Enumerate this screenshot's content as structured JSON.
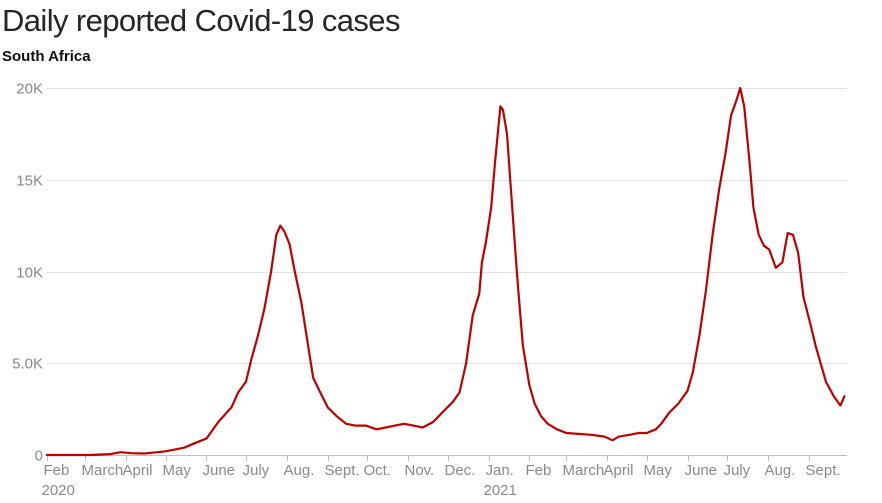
{
  "header": {
    "title": "Daily reported Covid-19 cases",
    "subtitle": "South Africa"
  },
  "colors": {
    "line": "#c00000",
    "grid": "#e3e3e3",
    "tick_text": "#8a8a8a",
    "title_text": "#262626"
  },
  "chart_data": {
    "type": "line",
    "title": "Daily reported Covid-19 cases",
    "subtitle": "South Africa",
    "xlabel": "",
    "ylabel": "",
    "ylim": [
      0,
      20000
    ],
    "xlim": [
      "2020-02-01",
      "2021-09-30"
    ],
    "grid": true,
    "y_ticks": [
      {
        "value": 0,
        "label": "0"
      },
      {
        "value": 5000,
        "label": "5.0K"
      },
      {
        "value": 10000,
        "label": "10K"
      },
      {
        "value": 15000,
        "label": "15K"
      },
      {
        "value": 20000,
        "label": "20K"
      }
    ],
    "x_ticks": [
      {
        "date": "2020-02-01",
        "label": "Feb",
        "year_label": "2020"
      },
      {
        "date": "2020-03-01",
        "label": "March"
      },
      {
        "date": "2020-04-01",
        "label": "April"
      },
      {
        "date": "2020-05-01",
        "label": "May"
      },
      {
        "date": "2020-06-01",
        "label": "June"
      },
      {
        "date": "2020-07-01",
        "label": "July"
      },
      {
        "date": "2020-08-01",
        "label": "Aug."
      },
      {
        "date": "2020-09-01",
        "label": "Sept."
      },
      {
        "date": "2020-10-01",
        "label": "Oct."
      },
      {
        "date": "2020-11-01",
        "label": "Nov."
      },
      {
        "date": "2020-12-01",
        "label": "Dec."
      },
      {
        "date": "2021-01-01",
        "label": "Jan.",
        "year_label": "2021"
      },
      {
        "date": "2021-02-01",
        "label": "Feb"
      },
      {
        "date": "2021-03-01",
        "label": "March"
      },
      {
        "date": "2021-04-01",
        "label": "April"
      },
      {
        "date": "2021-05-01",
        "label": "May"
      },
      {
        "date": "2021-06-01",
        "label": "June"
      },
      {
        "date": "2021-07-01",
        "label": "July"
      },
      {
        "date": "2021-08-01",
        "label": "Aug."
      },
      {
        "date": "2021-09-01",
        "label": "Sept."
      }
    ],
    "series": [
      {
        "x": [
          "2020-02-01",
          "2020-03-05",
          "2020-03-20",
          "2020-03-28",
          "2020-04-05",
          "2020-04-15",
          "2020-05-01",
          "2020-05-15",
          "2020-05-25",
          "2020-06-01",
          "2020-06-10",
          "2020-06-20",
          "2020-06-25",
          "2020-07-01",
          "2020-07-05",
          "2020-07-10",
          "2020-07-15",
          "2020-07-20",
          "2020-07-24",
          "2020-07-27",
          "2020-07-30",
          "2020-08-03",
          "2020-08-07",
          "2020-08-12",
          "2020-08-17",
          "2020-08-21",
          "2020-08-25",
          "2020-09-01",
          "2020-09-08",
          "2020-09-15",
          "2020-09-22",
          "2020-09-30",
          "2020-10-08",
          "2020-10-15",
          "2020-10-22",
          "2020-10-29",
          "2020-11-05",
          "2020-11-12",
          "2020-11-20",
          "2020-11-28",
          "2020-12-05",
          "2020-12-10",
          "2020-12-15",
          "2020-12-20",
          "2020-12-25",
          "2020-12-27",
          "2020-12-30",
          "2021-01-03",
          "2021-01-06",
          "2021-01-10",
          "2021-01-12",
          "2021-01-15",
          "2021-01-19",
          "2021-01-23",
          "2021-01-27",
          "2021-02-01",
          "2021-02-05",
          "2021-02-10",
          "2021-02-15",
          "2021-02-22",
          "2021-03-01",
          "2021-03-10",
          "2021-03-20",
          "2021-03-30",
          "2021-04-05",
          "2021-04-10",
          "2021-04-18",
          "2021-04-25",
          "2021-05-01",
          "2021-05-08",
          "2021-05-12",
          "2021-05-18",
          "2021-05-25",
          "2021-06-01",
          "2021-06-05",
          "2021-06-10",
          "2021-06-15",
          "2021-06-20",
          "2021-06-25",
          "2021-06-30",
          "2021-07-04",
          "2021-07-08",
          "2021-07-11",
          "2021-07-14",
          "2021-07-18",
          "2021-07-21",
          "2021-07-25",
          "2021-07-29",
          "2021-08-02",
          "2021-08-07",
          "2021-08-12",
          "2021-08-16",
          "2021-08-20",
          "2021-08-24",
          "2021-08-28",
          "2021-09-02",
          "2021-09-06",
          "2021-09-10",
          "2021-09-14",
          "2021-09-20",
          "2021-09-25",
          "2021-09-28"
        ],
        "values": [
          0,
          0,
          50,
          150,
          100,
          80,
          200,
          400,
          700,
          900,
          1800,
          2600,
          3400,
          4000,
          5200,
          6500,
          8000,
          10000,
          12000,
          12500,
          12200,
          11500,
          10000,
          8300,
          6000,
          4200,
          3600,
          2600,
          2100,
          1700,
          1600,
          1600,
          1400,
          1500,
          1600,
          1700,
          1600,
          1500,
          1800,
          2400,
          2900,
          3400,
          5000,
          7600,
          8800,
          10500,
          11600,
          13500,
          16000,
          19000,
          18800,
          17500,
          13500,
          9500,
          6000,
          3800,
          2800,
          2100,
          1700,
          1400,
          1200,
          1150,
          1100,
          1000,
          800,
          1000,
          1100,
          1200,
          1200,
          1400,
          1700,
          2300,
          2800,
          3500,
          4500,
          6500,
          9000,
          12000,
          14500,
          16500,
          18500,
          19300,
          20000,
          19000,
          16000,
          13500,
          12000,
          11400,
          11200,
          10200,
          10500,
          12100,
          12000,
          11000,
          8600,
          7200,
          6000,
          5000,
          4000,
          3200,
          2700,
          3200
        ]
      }
    ]
  }
}
